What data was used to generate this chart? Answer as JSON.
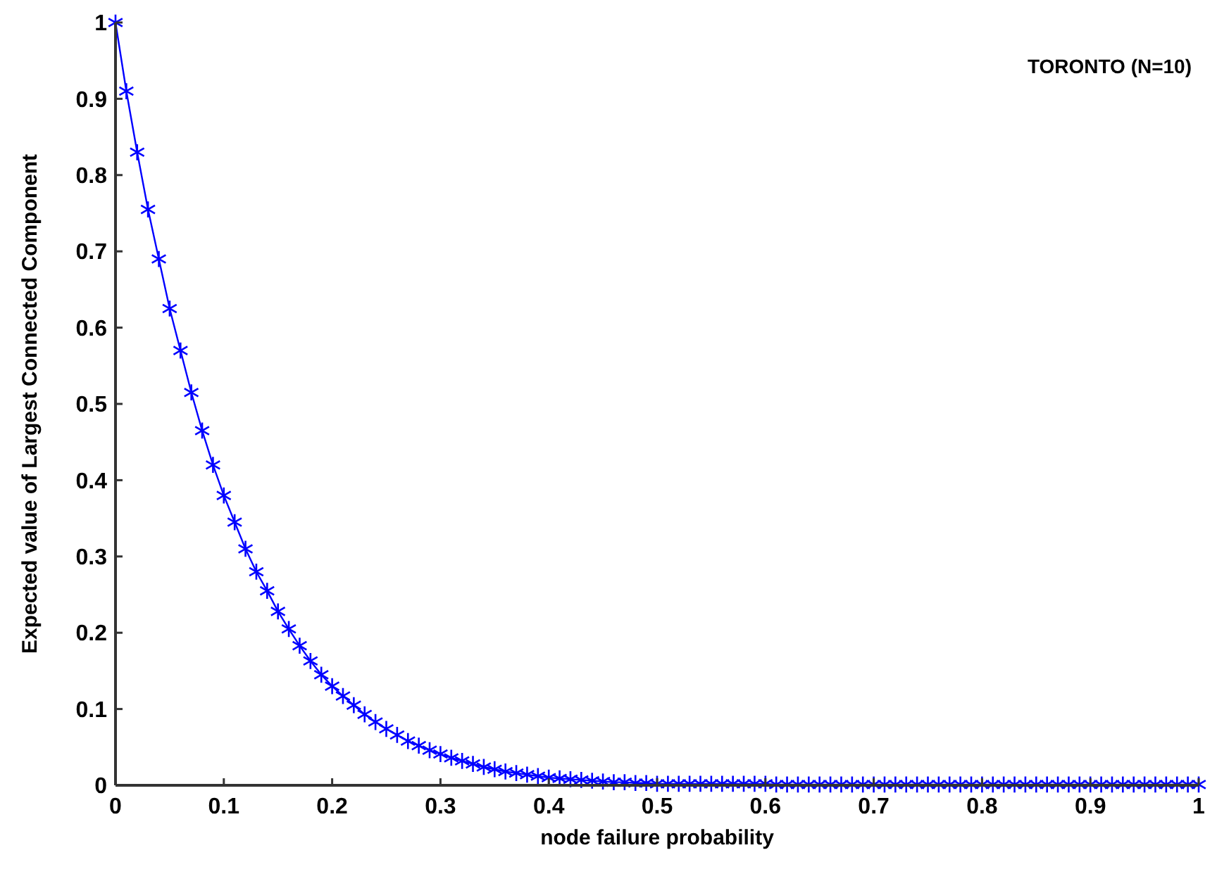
{
  "chart_data": {
    "type": "line",
    "xlabel": "node failure probability",
    "ylabel": "Expected value of Largest Connected Component",
    "annotations": [
      "TORONTO (N=10)"
    ],
    "x": [
      0,
      0.01,
      0.02,
      0.03,
      0.04,
      0.05,
      0.06,
      0.07,
      0.08,
      0.09,
      0.1,
      0.11,
      0.12,
      0.13,
      0.14,
      0.15,
      0.16,
      0.17,
      0.18,
      0.19,
      0.2,
      0.21,
      0.22,
      0.23,
      0.24,
      0.25,
      0.26,
      0.27,
      0.28,
      0.29,
      0.3,
      0.31,
      0.32,
      0.33,
      0.34,
      0.35,
      0.36,
      0.37,
      0.38,
      0.39,
      0.4,
      0.41,
      0.42,
      0.43,
      0.44,
      0.45,
      0.46,
      0.47,
      0.48,
      0.49,
      0.5,
      0.51,
      0.52,
      0.53,
      0.54,
      0.55,
      0.56,
      0.57,
      0.58,
      0.59,
      0.6,
      0.61,
      0.62,
      0.63,
      0.64,
      0.65,
      0.66,
      0.67,
      0.68,
      0.69,
      0.7,
      0.71,
      0.72,
      0.73,
      0.74,
      0.75,
      0.76,
      0.77,
      0.78,
      0.79,
      0.8,
      0.81,
      0.82,
      0.83,
      0.84,
      0.85,
      0.86,
      0.87,
      0.88,
      0.89,
      0.9,
      0.91,
      0.92,
      0.93,
      0.94,
      0.95,
      0.96,
      0.97,
      0.98,
      0.99,
      1
    ],
    "series": [
      {
        "color": "#0000ff",
        "values": [
          1,
          0.91,
          0.83,
          0.755,
          0.69,
          0.625,
          0.57,
          0.515,
          0.465,
          0.42,
          0.38,
          0.345,
          0.31,
          0.28,
          0.255,
          0.228,
          0.205,
          0.183,
          0.163,
          0.145,
          0.13,
          0.117,
          0.105,
          0.093,
          0.083,
          0.074,
          0.066,
          0.058,
          0.052,
          0.046,
          0.041,
          0.036,
          0.032,
          0.028,
          0.024,
          0.021,
          0.018,
          0.016,
          0.014,
          0.012,
          0.01,
          0.009,
          0.008,
          0.007,
          0.006,
          0.005,
          0.004,
          0.004,
          0.003,
          0.003,
          0.002,
          0.002,
          0.002,
          0.002,
          0.002,
          0.002,
          0.002,
          0.002,
          0.002,
          0.002,
          0.002,
          0.001,
          0.001,
          0.001,
          0.001,
          0.001,
          0.001,
          0.001,
          0.001,
          0.001,
          0.001,
          0.001,
          0.001,
          0.001,
          0.001,
          0.001,
          0.001,
          0.001,
          0.001,
          0.001,
          0.001,
          0.001,
          0.001,
          0.001,
          0.001,
          0.001,
          0.001,
          0.001,
          0.001,
          0.001,
          0.001,
          0.001,
          0.001,
          0.001,
          0.001,
          0.001,
          0.001,
          0.001,
          0.001,
          0.001,
          0.001
        ]
      }
    ],
    "xlim": [
      0,
      1
    ],
    "ylim": [
      0,
      1
    ],
    "xticks": [
      0,
      0.1,
      0.2,
      0.3,
      0.4,
      0.5,
      0.6,
      0.7,
      0.8,
      0.9,
      1
    ],
    "yticks": [
      0,
      0.1,
      0.2,
      0.3,
      0.4,
      0.5,
      0.6,
      0.7,
      0.8,
      0.9,
      1
    ],
    "marker": "cross",
    "line_style": "solid",
    "grid": false
  }
}
